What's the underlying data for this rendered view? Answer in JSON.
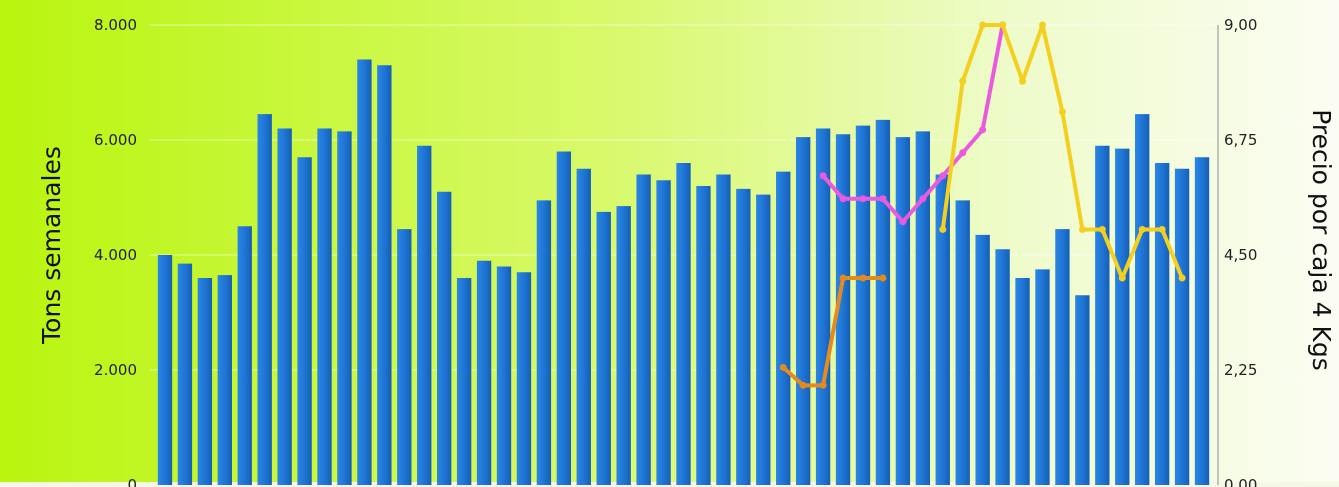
{
  "chart_data": {
    "type": "bar",
    "title": "",
    "ylabel_left": "Tons semanales",
    "ylabel_right": "Precio por caja 4 Kgs",
    "ylim_left": [
      0,
      8000
    ],
    "ylim_right": [
      0,
      9
    ],
    "y_ticks_left": [
      "0",
      "2.000",
      "4.000",
      "6.000",
      "8.000"
    ],
    "y_ticks_right": [
      "0,00",
      "2,25",
      "4,50",
      "6,75",
      "9,00"
    ],
    "grid": true,
    "bar_color": "#1e73d2",
    "bars": [
      4000,
      3850,
      3600,
      3650,
      4500,
      6450,
      6200,
      5700,
      6200,
      6150,
      7400,
      7300,
      4450,
      5900,
      5100,
      3600,
      3900,
      3800,
      3700,
      4950,
      5800,
      5500,
      4750,
      4850,
      5400,
      5300,
      5600,
      5200,
      5400,
      5150,
      5050,
      5450,
      6050,
      6200,
      6100,
      6250,
      6350,
      6050,
      6150,
      5400,
      4950,
      4350,
      4100,
      3600,
      3750,
      4450,
      3300,
      5900,
      5850,
      6450,
      5600,
      5500,
      5700
    ],
    "lines": [
      {
        "color": "#e38b1e",
        "points": [
          [
            31,
            2.3
          ],
          [
            32,
            1.95
          ],
          [
            33,
            1.95
          ],
          [
            34,
            4.05
          ],
          [
            35,
            4.05
          ],
          [
            36,
            4.05
          ]
        ]
      },
      {
        "color": "#ea5ae0",
        "points": [
          [
            33,
            6.05
          ],
          [
            34,
            5.6
          ],
          [
            35,
            5.6
          ],
          [
            36,
            5.6
          ],
          [
            37,
            5.15
          ],
          [
            38,
            5.6
          ],
          [
            39,
            6.05
          ],
          [
            40,
            6.5
          ],
          [
            41,
            6.95
          ],
          [
            42,
            9.0
          ]
        ]
      },
      {
        "color": "#f3d020",
        "points": [
          [
            39,
            5.0
          ],
          [
            40,
            7.9
          ],
          [
            41,
            9.0
          ],
          [
            42,
            9.0
          ],
          [
            43,
            7.9
          ],
          [
            44,
            9.0
          ],
          [
            45,
            7.3
          ],
          [
            46,
            5.0
          ],
          [
            47,
            5.0
          ],
          [
            48,
            4.05
          ],
          [
            49,
            5.0
          ],
          [
            50,
            5.0
          ],
          [
            51,
            4.05
          ]
        ]
      }
    ]
  }
}
